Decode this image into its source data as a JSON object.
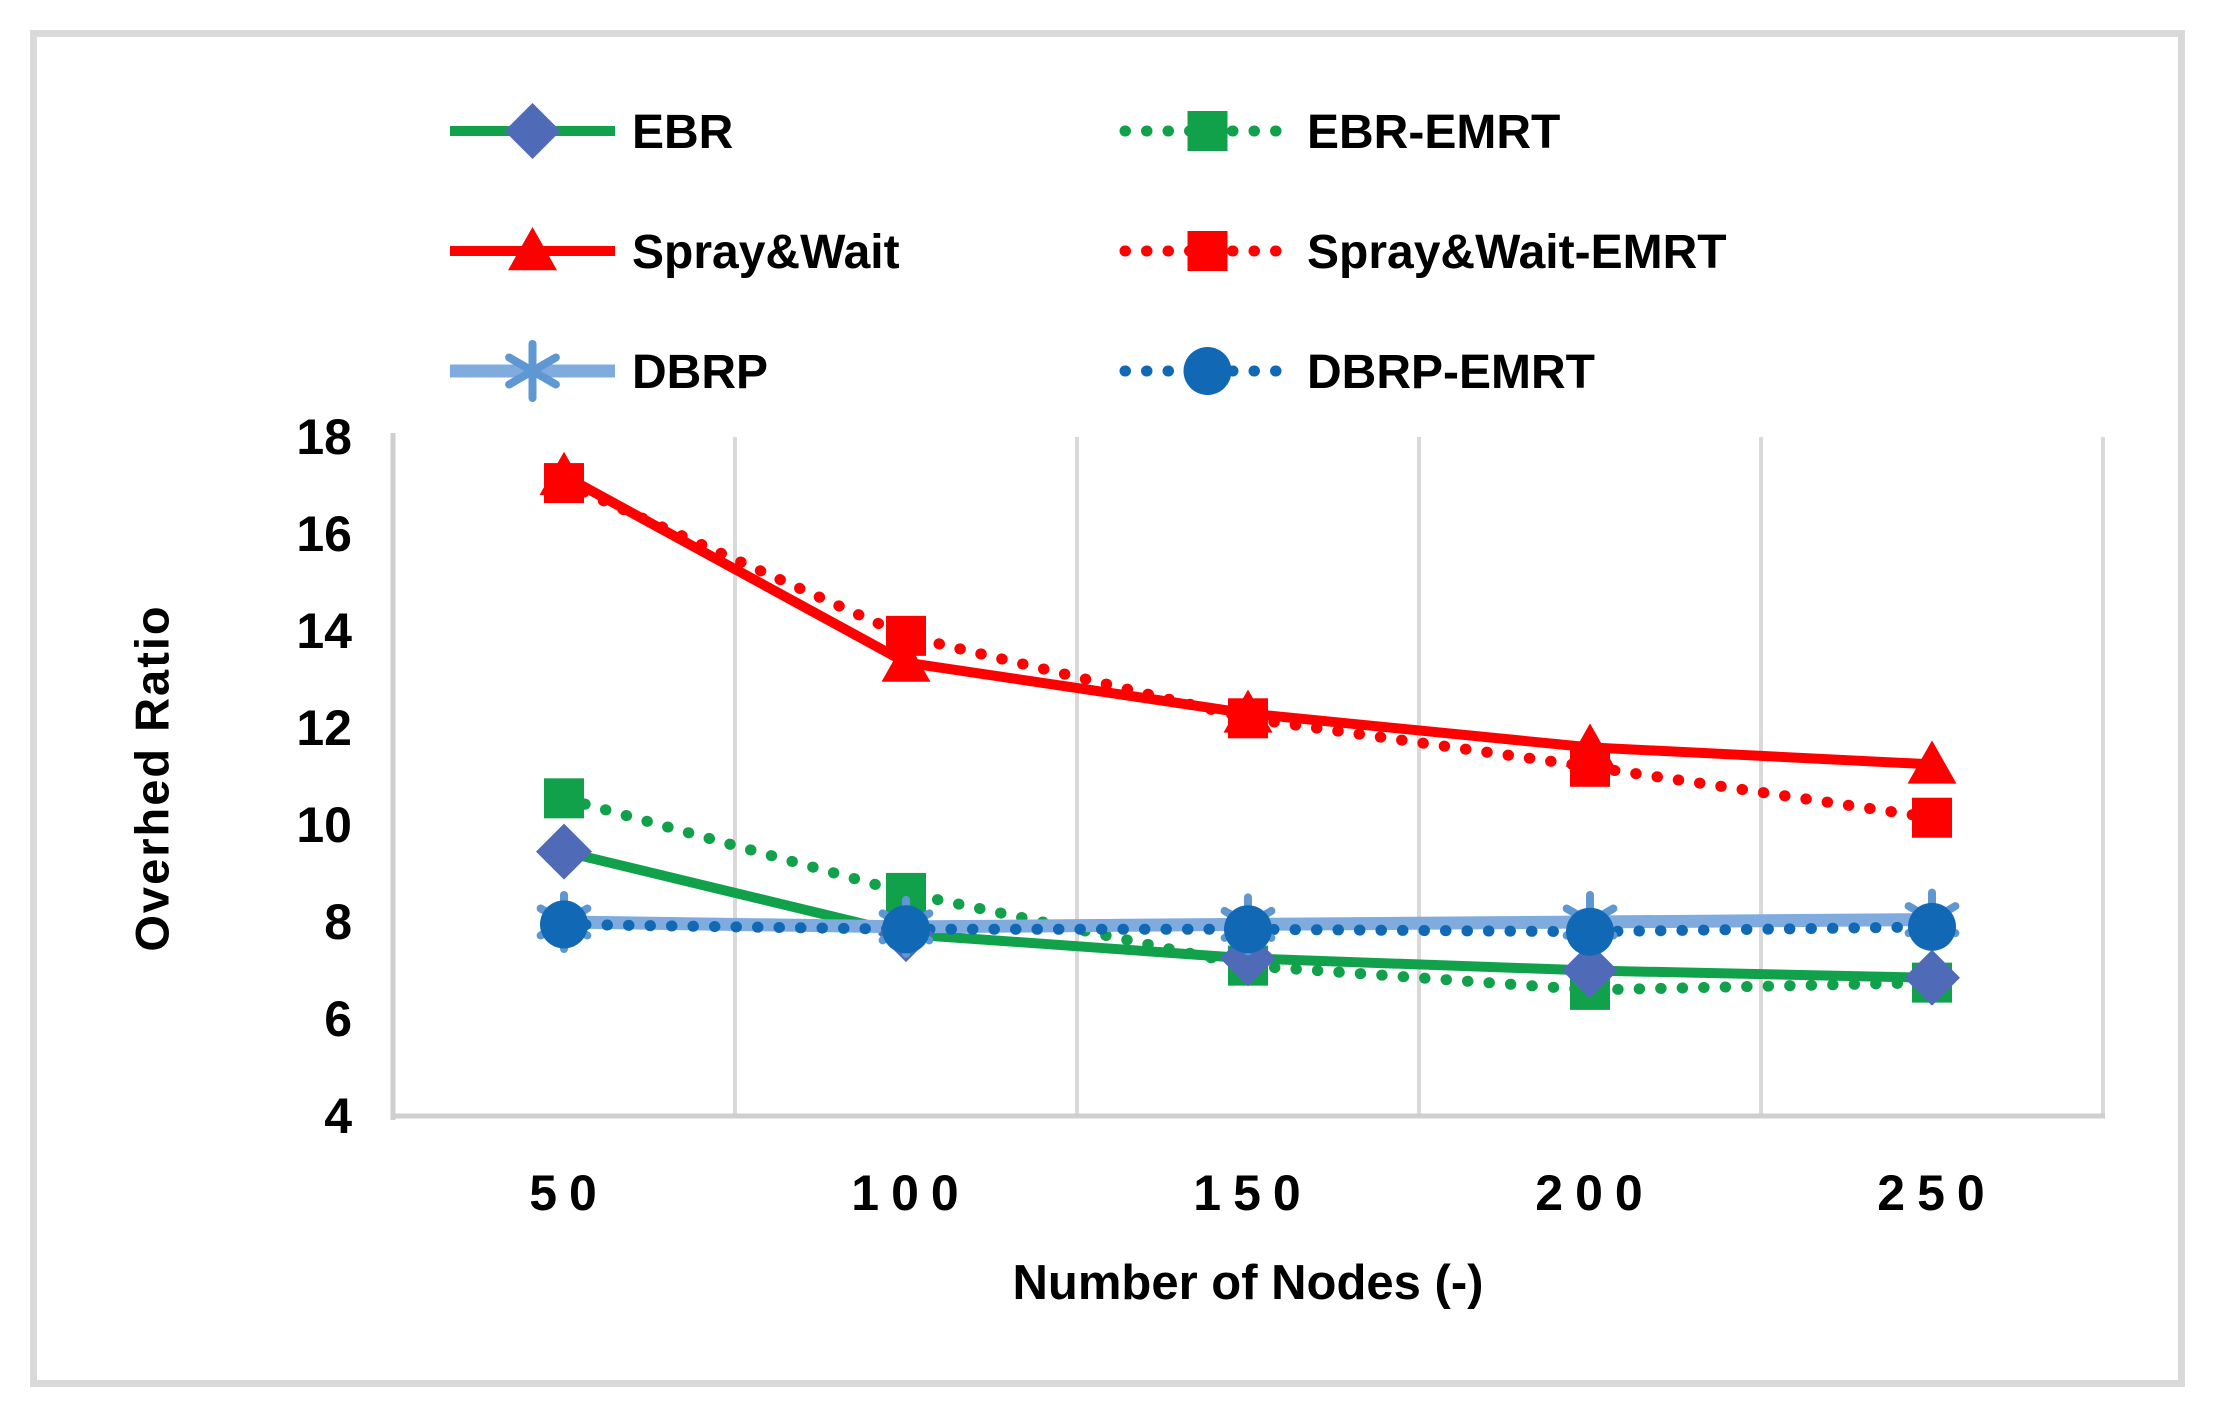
{
  "figure": {
    "background_color": "#ffffff",
    "frame_border_color": "#d9d9d9",
    "text_color": "#000000",
    "gridline_color": "#d9d9d9",
    "axis_line_color": "#cfcfcf"
  },
  "legend": {
    "columns": [
      [
        "EBR",
        "Spray&Wait",
        "DBRP"
      ],
      [
        "EBR-EMRT",
        "Spray&Wait-EMRT",
        "DBRP-EMRT"
      ]
    ]
  },
  "chart_data": {
    "type": "line",
    "title": "",
    "xlabel": "Number of Nodes (-)",
    "ylabel": "Overhed Ratio",
    "x_categories": [
      "50",
      "100",
      "150",
      "200",
      "250"
    ],
    "x_values": [
      50,
      100,
      150,
      200,
      250
    ],
    "y_ticks": [
      18,
      16,
      14,
      12,
      10,
      8,
      6,
      4
    ],
    "ylim": [
      4,
      18
    ],
    "grid": "vertical-only",
    "legend_position": "top",
    "series": [
      {
        "name": "EBR",
        "values": [
          9.45,
          7.75,
          7.25,
          7.0,
          6.85
        ],
        "color": "#12A14B",
        "line_style": "solid",
        "marker": "diamond",
        "marker_color": "#4F6BB7"
      },
      {
        "name": "EBR-EMRT",
        "values": [
          10.55,
          8.6,
          7.1,
          6.6,
          6.75
        ],
        "color": "#12A14B",
        "line_style": "dotted",
        "marker": "square",
        "marker_color": "#12A14B"
      },
      {
        "name": "Spray&Wait",
        "values": [
          17.2,
          13.35,
          12.3,
          11.6,
          11.25
        ],
        "color": "#FE0000",
        "line_style": "solid",
        "marker": "triangle",
        "marker_color": "#FE0000"
      },
      {
        "name": "Spray&Wait-EMRT",
        "values": [
          17.05,
          13.9,
          12.2,
          11.2,
          10.15
        ],
        "color": "#FE0000",
        "line_style": "dotted",
        "marker": "square",
        "marker_color": "#FE0000"
      },
      {
        "name": "DBRP",
        "values": [
          8.0,
          7.9,
          7.95,
          8.0,
          8.05
        ],
        "color": "#7FABDF",
        "line_style": "solid",
        "marker": "asterisk",
        "marker_color": "#5E97D2"
      },
      {
        "name": "DBRP-EMRT",
        "values": [
          7.95,
          7.85,
          7.85,
          7.8,
          7.9
        ],
        "color": "#1169B5",
        "line_style": "dotted",
        "marker": "circle",
        "marker_color": "#1169B5"
      }
    ]
  }
}
